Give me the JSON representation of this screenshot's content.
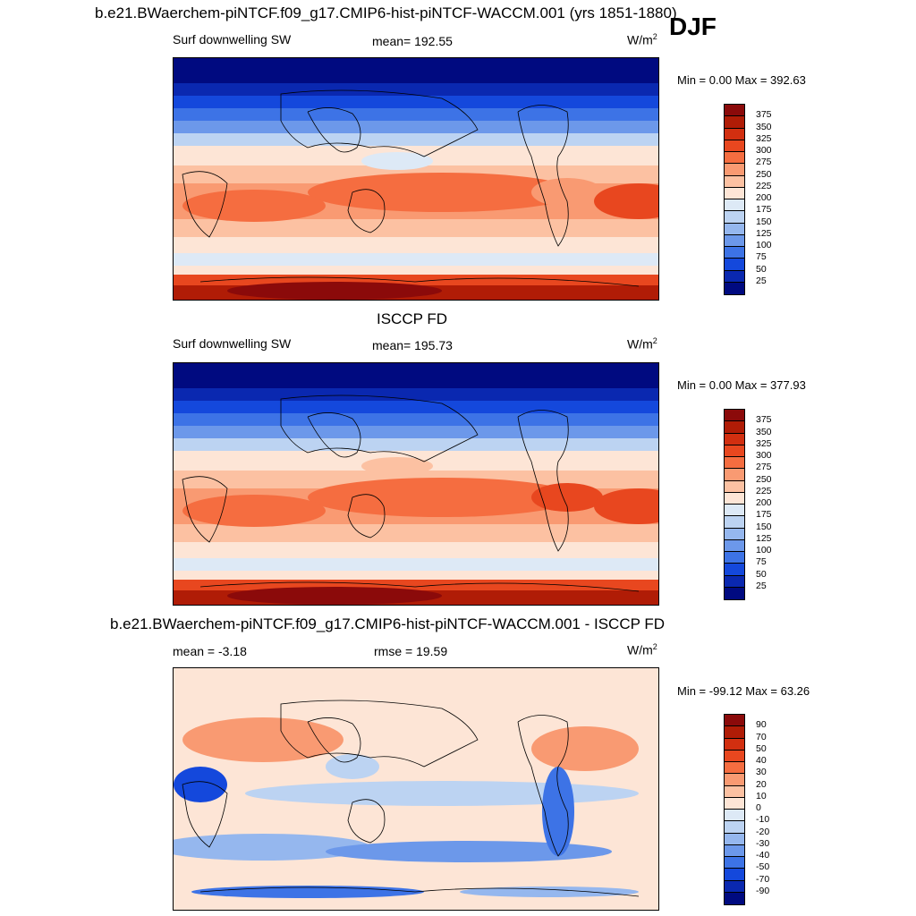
{
  "panels": [
    {
      "title": "b.e21.BWaerchem-piNTCF.f09_g17.CMIP6-hist-piNTCF-WACCM.001 (yrs 1851-1880)",
      "season": "DJF",
      "variable": "Surf downwelling SW",
      "stat": "mean= 192.55",
      "units": "W/m",
      "units_sup": "2",
      "minmax": "Min =   0.00 Max = 392.63",
      "kind": "model"
    },
    {
      "title": "ISCCP FD",
      "variable": "Surf downwelling SW",
      "stat": "mean= 195.73",
      "units": "W/m",
      "units_sup": "2",
      "minmax": "Min =   0.00 Max = 377.93",
      "kind": "obs"
    },
    {
      "title": "b.e21.BWaerchem-piNTCF.f09_g17.CMIP6-hist-piNTCF-WACCM.001 - ISCCP FD",
      "stat_left": "mean =  -3.18",
      "stat": "rmse =  19.59",
      "units": "W/m",
      "units_sup": "2",
      "minmax": "Min = -99.12 Max =  63.26",
      "kind": "diff"
    }
  ],
  "chart_data": [
    {
      "type": "heatmap",
      "title": "Surf downwelling SW",
      "units": "W/m2",
      "mean": 192.55,
      "min": 0.0,
      "max": 392.63,
      "colorbar_levels": [
        375,
        350,
        325,
        300,
        275,
        250,
        225,
        200,
        175,
        150,
        125,
        100,
        75,
        50,
        25
      ],
      "colorbar_colors": [
        "#8b0a0a",
        "#b01c06",
        "#d22f10",
        "#e8471f",
        "#f56d40",
        "#f99a72",
        "#fcc1a2",
        "#fde5d6",
        "#dde9f6",
        "#bcd3f2",
        "#95b7ee",
        "#6c98ea",
        "#3d73e6",
        "#1448dc",
        "#0a28b0",
        "#000a80"
      ]
    },
    {
      "type": "heatmap",
      "title": "Surf downwelling SW",
      "units": "W/m2",
      "mean": 195.73,
      "min": 0.0,
      "max": 377.93,
      "colorbar_levels": [
        375,
        350,
        325,
        300,
        275,
        250,
        225,
        200,
        175,
        150,
        125,
        100,
        75,
        50,
        25
      ],
      "colorbar_colors": [
        "#8b0a0a",
        "#b01c06",
        "#d22f10",
        "#e8471f",
        "#f56d40",
        "#f99a72",
        "#fcc1a2",
        "#fde5d6",
        "#dde9f6",
        "#bcd3f2",
        "#95b7ee",
        "#6c98ea",
        "#3d73e6",
        "#1448dc",
        "#0a28b0",
        "#000a80"
      ]
    },
    {
      "type": "heatmap",
      "title": "b.e21.BWaerchem-piNTCF.f09_g17.CMIP6-hist-piNTCF-WACCM.001 - ISCCP FD",
      "units": "W/m2",
      "mean": -3.18,
      "rmse": 19.59,
      "min": -99.12,
      "max": 63.26,
      "colorbar_levels": [
        90,
        70,
        50,
        40,
        30,
        20,
        10,
        0,
        -10,
        -20,
        -30,
        -40,
        -50,
        -70,
        -90
      ],
      "colorbar_colors": [
        "#8b0a0a",
        "#b01c06",
        "#d22f10",
        "#e8471f",
        "#f56d40",
        "#f99a72",
        "#fcc1a2",
        "#fde5d6",
        "#dde9f6",
        "#bcd3f2",
        "#95b7ee",
        "#6c98ea",
        "#3d73e6",
        "#1448dc",
        "#0a28b0",
        "#000a80"
      ]
    }
  ]
}
